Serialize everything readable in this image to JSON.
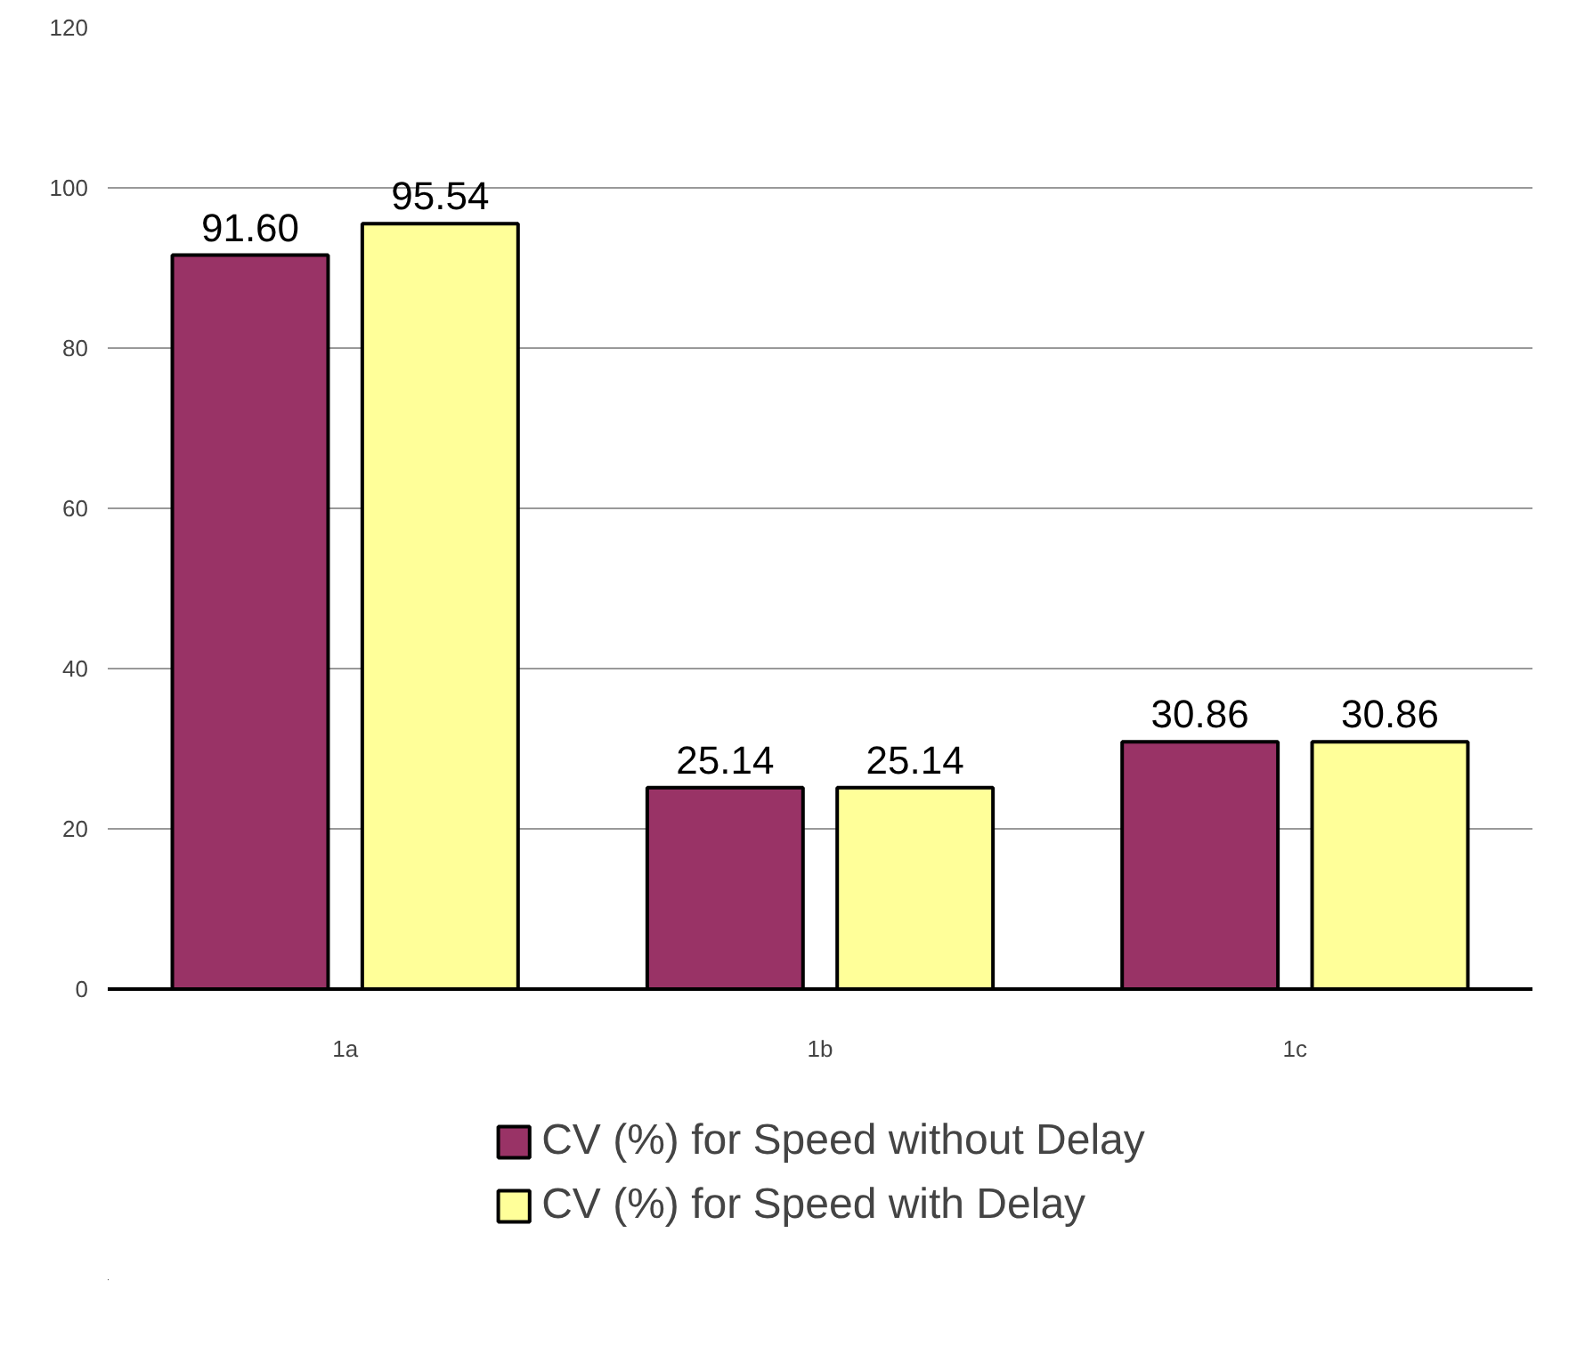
{
  "chart_data": {
    "type": "bar",
    "categories": [
      "1a",
      "1b",
      "1c"
    ],
    "series": [
      {
        "name": "CV (%) for Speed without Delay",
        "color": "#993366",
        "values": [
          91.6,
          25.14,
          30.86
        ],
        "value_labels": [
          "91.60",
          "25.14",
          "30.86"
        ]
      },
      {
        "name": "CV (%) for Speed with Delay",
        "color": "#ffff99",
        "values": [
          95.54,
          25.14,
          30.86
        ],
        "value_labels": [
          "95.54",
          "25.14",
          "30.86"
        ]
      }
    ],
    "ylim": [
      0,
      120
    ],
    "yticks": [
      0,
      20,
      40,
      60,
      80,
      100,
      120
    ],
    "grid": "y",
    "legend": "bottom"
  }
}
